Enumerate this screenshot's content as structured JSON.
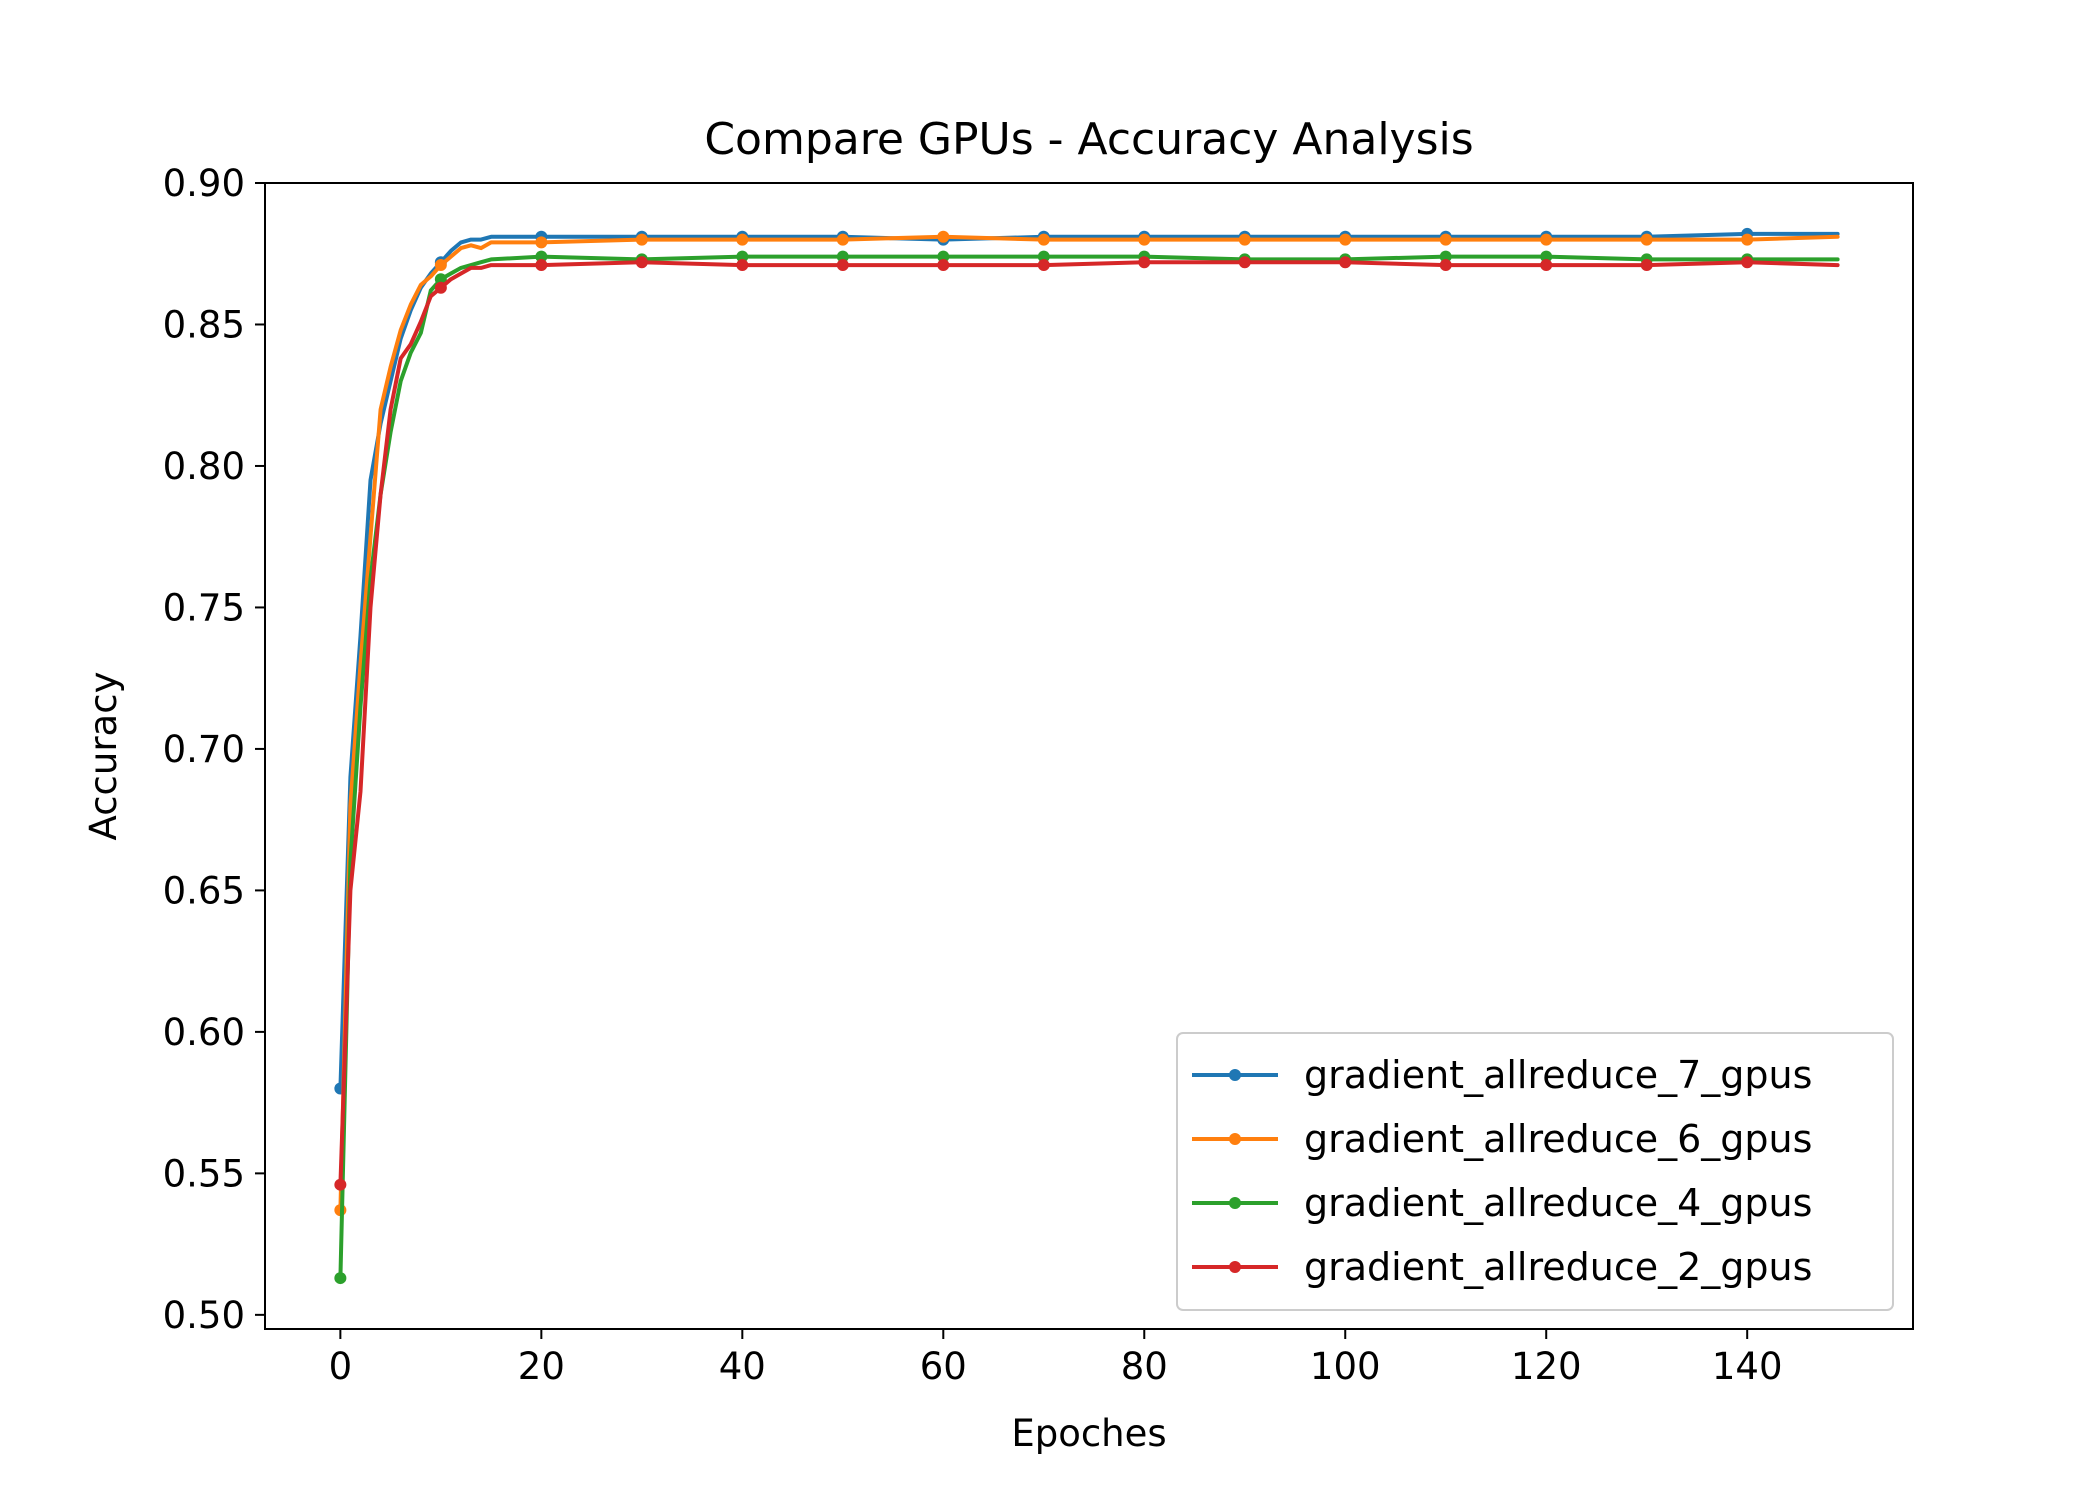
{
  "chart_data": {
    "type": "line",
    "title": "Compare GPUs - Accuracy Analysis",
    "xlabel": "Epoches",
    "ylabel": "Accuracy",
    "xlim": [
      -7.5,
      156.5
    ],
    "ylim": [
      0.495,
      0.9
    ],
    "x_ticks": [
      0,
      20,
      40,
      60,
      80,
      100,
      120,
      140
    ],
    "y_ticks": [
      0.5,
      0.55,
      0.6,
      0.65,
      0.7,
      0.75,
      0.8,
      0.85,
      0.9
    ],
    "x_tick_labels": [
      "0",
      "20",
      "40",
      "60",
      "80",
      "100",
      "120",
      "140"
    ],
    "y_tick_labels": [
      "0.50",
      "0.55",
      "0.60",
      "0.65",
      "0.70",
      "0.75",
      "0.80",
      "0.85",
      "0.90"
    ],
    "grid": false,
    "legend_position": "lower-right",
    "marker_every": 10,
    "series": [
      {
        "name": "gradient_allreduce_7_gpus",
        "color": "#1f77b4",
        "x": [
          0,
          1,
          2,
          3,
          4,
          5,
          6,
          7,
          8,
          9,
          10,
          11,
          12,
          13,
          14,
          15,
          20,
          30,
          40,
          50,
          60,
          70,
          80,
          90,
          100,
          110,
          120,
          130,
          140,
          149
        ],
        "y": [
          0.58,
          0.69,
          0.74,
          0.795,
          0.815,
          0.83,
          0.845,
          0.855,
          0.863,
          0.868,
          0.872,
          0.876,
          0.879,
          0.88,
          0.88,
          0.881,
          0.881,
          0.881,
          0.881,
          0.881,
          0.88,
          0.881,
          0.881,
          0.881,
          0.881,
          0.881,
          0.881,
          0.881,
          0.882,
          0.882
        ]
      },
      {
        "name": "gradient_allreduce_6_gpus",
        "color": "#ff7f0e",
        "x": [
          0,
          1,
          2,
          3,
          4,
          5,
          6,
          7,
          8,
          9,
          10,
          11,
          12,
          13,
          14,
          15,
          20,
          30,
          40,
          50,
          60,
          70,
          80,
          90,
          100,
          110,
          120,
          130,
          140,
          149
        ],
        "y": [
          0.537,
          0.68,
          0.73,
          0.775,
          0.82,
          0.835,
          0.848,
          0.857,
          0.864,
          0.867,
          0.871,
          0.874,
          0.877,
          0.878,
          0.877,
          0.879,
          0.879,
          0.88,
          0.88,
          0.88,
          0.881,
          0.88,
          0.88,
          0.88,
          0.88,
          0.88,
          0.88,
          0.88,
          0.88,
          0.881
        ]
      },
      {
        "name": "gradient_allreduce_4_gpus",
        "color": "#2ca02c",
        "x": [
          0,
          1,
          2,
          3,
          4,
          5,
          6,
          7,
          8,
          9,
          10,
          11,
          12,
          13,
          14,
          15,
          20,
          30,
          40,
          50,
          60,
          70,
          80,
          90,
          100,
          110,
          120,
          130,
          140,
          149
        ],
        "y": [
          0.513,
          0.66,
          0.715,
          0.76,
          0.79,
          0.812,
          0.83,
          0.84,
          0.847,
          0.862,
          0.866,
          0.868,
          0.87,
          0.871,
          0.872,
          0.873,
          0.874,
          0.873,
          0.874,
          0.874,
          0.874,
          0.874,
          0.874,
          0.873,
          0.873,
          0.874,
          0.874,
          0.873,
          0.873,
          0.873
        ]
      },
      {
        "name": "gradient_allreduce_2_gpus",
        "color": "#d62728",
        "x": [
          0,
          1,
          2,
          3,
          4,
          5,
          6,
          7,
          8,
          9,
          10,
          11,
          12,
          13,
          14,
          15,
          20,
          30,
          40,
          50,
          60,
          70,
          80,
          90,
          100,
          110,
          120,
          130,
          140,
          149
        ],
        "y": [
          0.546,
          0.65,
          0.685,
          0.75,
          0.79,
          0.82,
          0.838,
          0.843,
          0.851,
          0.86,
          0.863,
          0.866,
          0.868,
          0.87,
          0.87,
          0.871,
          0.871,
          0.872,
          0.871,
          0.871,
          0.871,
          0.871,
          0.872,
          0.872,
          0.872,
          0.871,
          0.871,
          0.871,
          0.872,
          0.871
        ]
      }
    ]
  }
}
